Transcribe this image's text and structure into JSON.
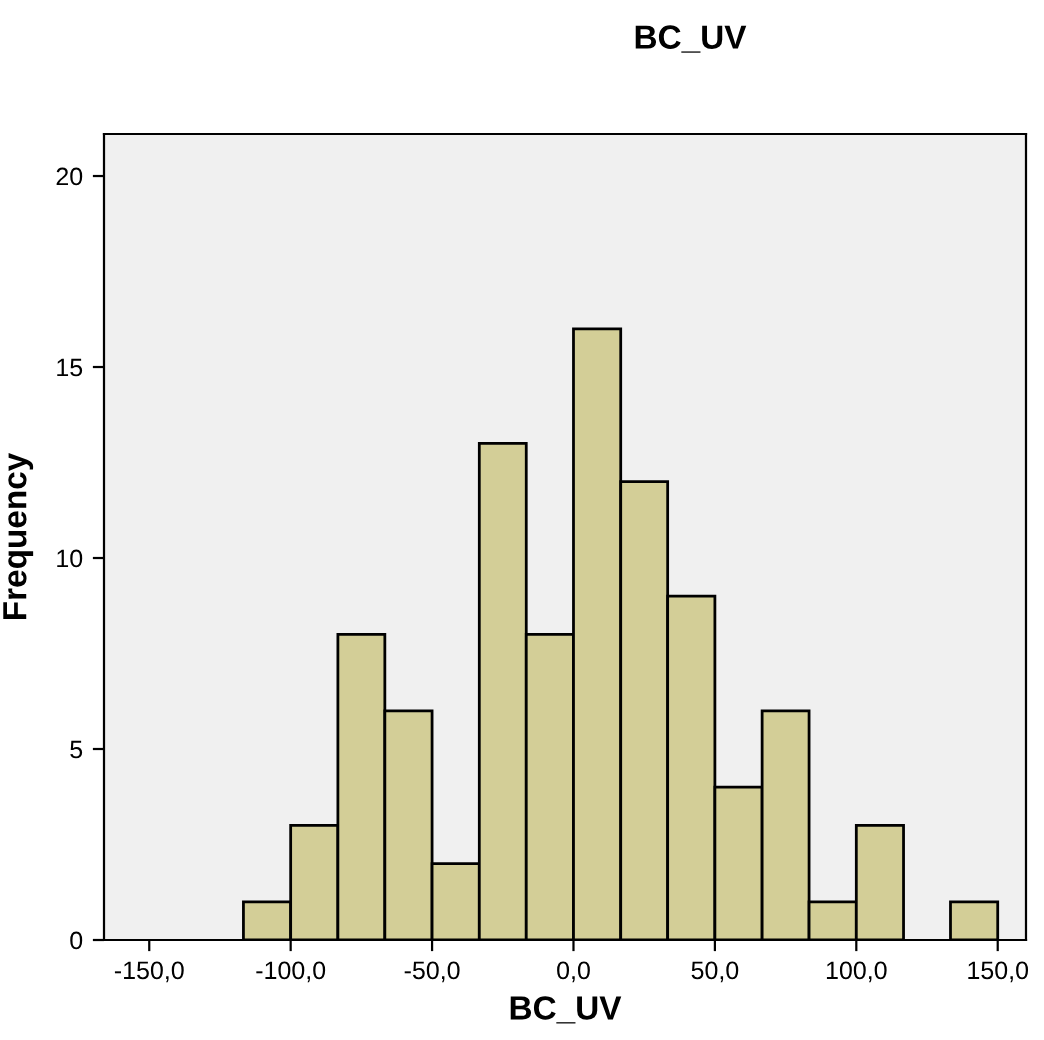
{
  "chart_data": {
    "type": "histogram",
    "title": "BC_UV",
    "xlabel": "BC_UV",
    "ylabel": "Frequency",
    "bins": [
      -116.7,
      -100,
      -83.3,
      -66.7,
      -50,
      -33.3,
      -16.7,
      0,
      16.7,
      33.3,
      50,
      66.7,
      83.3,
      100,
      116.7,
      133.3,
      150
    ],
    "values": [
      1,
      3,
      8,
      6,
      2,
      13,
      8,
      16,
      12,
      9,
      4,
      6,
      1,
      3,
      0,
      1
    ],
    "color": "#d3ce97",
    "xlim": [
      -166,
      160
    ],
    "xticks": [
      {
        "value": -150,
        "label": "-150,0"
      },
      {
        "value": -100,
        "label": "-100,0"
      },
      {
        "value": -50,
        "label": "-50,0"
      },
      {
        "value": 0,
        "label": "0,0"
      },
      {
        "value": 50,
        "label": "50,0"
      },
      {
        "value": 100,
        "label": "100,0"
      },
      {
        "value": 150,
        "label": "150,0"
      }
    ],
    "ylim": [
      0,
      21.1
    ],
    "yticks": [
      0,
      5,
      10,
      15,
      20
    ],
    "grid": false
  }
}
